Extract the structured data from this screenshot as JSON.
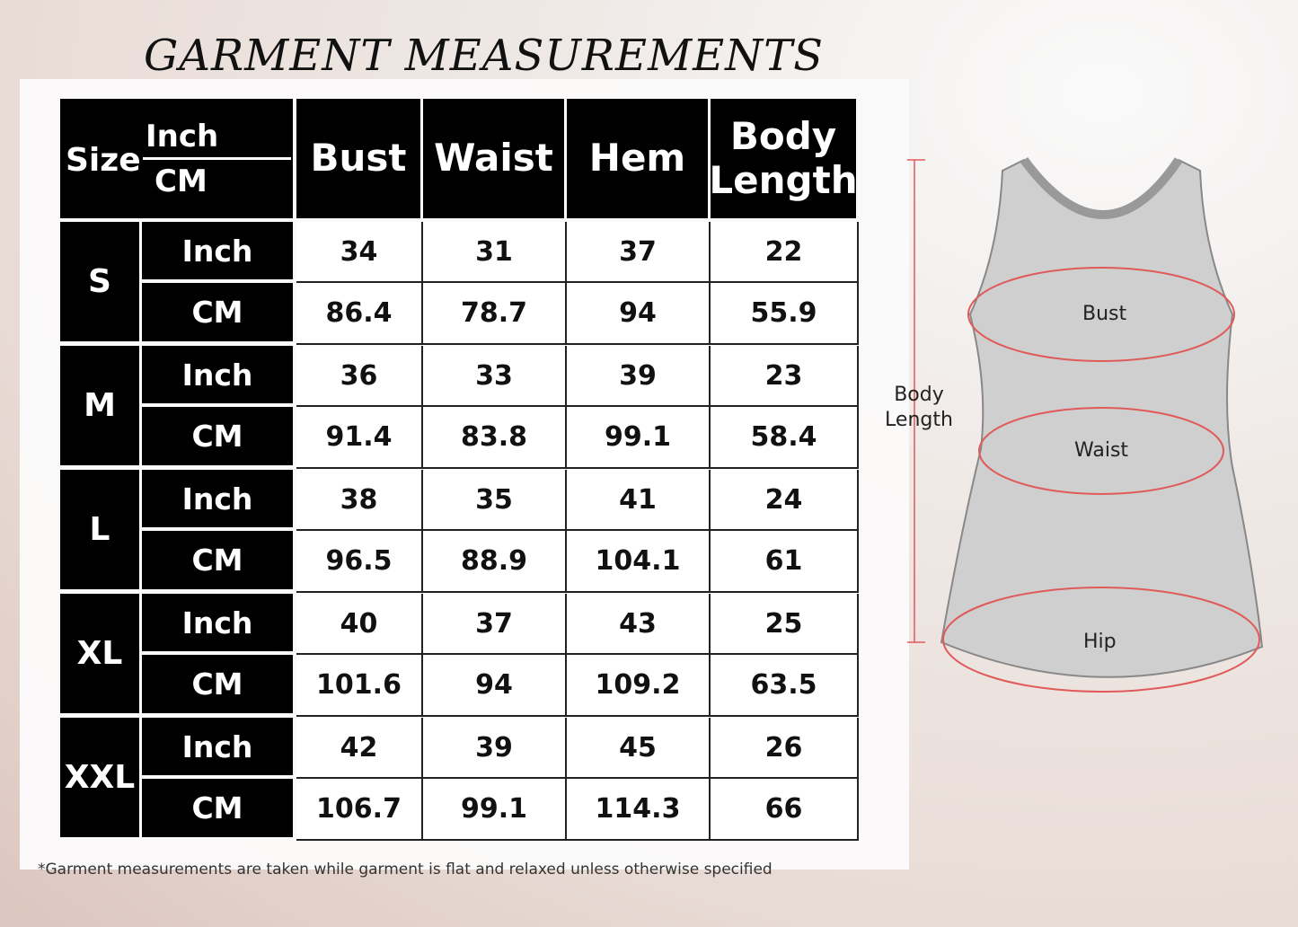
{
  "title": "GARMENT MEASUREMENTS",
  "header": {
    "size": "Size",
    "inch": "Inch",
    "cm": "CM",
    "columns": [
      "Bust",
      "Waist",
      "Hem",
      "Body Length"
    ]
  },
  "rows": [
    {
      "size": "S",
      "inch": [
        "34",
        "31",
        "37",
        "22"
      ],
      "cm": [
        "86.4",
        "78.7",
        "94",
        "55.9"
      ]
    },
    {
      "size": "M",
      "inch": [
        "36",
        "33",
        "39",
        "23"
      ],
      "cm": [
        "91.4",
        "83.8",
        "99.1",
        "58.4"
      ]
    },
    {
      "size": "L",
      "inch": [
        "38",
        "35",
        "41",
        "24"
      ],
      "cm": [
        "96.5",
        "88.9",
        "104.1",
        "61"
      ]
    },
    {
      "size": "XL",
      "inch": [
        "40",
        "37",
        "43",
        "25"
      ],
      "cm": [
        "101.6",
        "94",
        "109.2",
        "63.5"
      ]
    },
    {
      "size": "XXL",
      "inch": [
        "42",
        "39",
        "45",
        "26"
      ],
      "cm": [
        "106.7",
        "99.1",
        "114.3",
        "66"
      ]
    }
  ],
  "unit_labels": {
    "inch": "Inch",
    "cm": "CM"
  },
  "diagram": {
    "bust": "Bust",
    "waist": "Waist",
    "hip": "Hip",
    "body_length": "Body Length",
    "accent": "#e05a5a"
  },
  "footnote": "*Garment measurements are taken while garment is flat and relaxed unless otherwise specified"
}
